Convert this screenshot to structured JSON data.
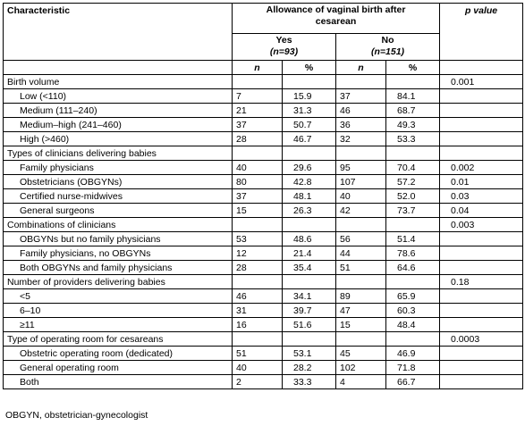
{
  "header": {
    "characteristic": "Characteristic",
    "allowance": "Allowance of vaginal birth after cesarean",
    "yes": "Yes",
    "yes_n": "(n=93)",
    "no": "No",
    "no_n": "(n=151)",
    "p_value": "p value",
    "n": "n",
    "pct": "%"
  },
  "sections": [
    {
      "label": "Birth volume",
      "p": "0.001",
      "rows": [
        {
          "label": "Low (<110)",
          "yes_n": "7",
          "yes_pct": "15.9",
          "no_n": "37",
          "no_pct": "84.1",
          "p": ""
        },
        {
          "label": "Medium (111–240)",
          "yes_n": "21",
          "yes_pct": "31.3",
          "no_n": "46",
          "no_pct": "68.7",
          "p": ""
        },
        {
          "label": "Medium–high (241–460)",
          "yes_n": "37",
          "yes_pct": "50.7",
          "no_n": "36",
          "no_pct": "49.3",
          "p": ""
        },
        {
          "label": "High (>460)",
          "yes_n": "28",
          "yes_pct": "46.7",
          "no_n": "32",
          "no_pct": "53.3",
          "p": ""
        }
      ]
    },
    {
      "label": "Types of clinicians delivering babies",
      "p": "",
      "rows": [
        {
          "label": "Family physicians",
          "yes_n": "40",
          "yes_pct": "29.6",
          "no_n": "95",
          "no_pct": "70.4",
          "p": "0.002"
        },
        {
          "label": "Obstetricians (OBGYNs)",
          "yes_n": "80",
          "yes_pct": "42.8",
          "no_n": "107",
          "no_pct": "57.2",
          "p": "0.01"
        },
        {
          "label": "Certified nurse-midwives",
          "yes_n": "37",
          "yes_pct": "48.1",
          "no_n": "40",
          "no_pct": "52.0",
          "p": "0.03"
        },
        {
          "label": "General surgeons",
          "yes_n": "15",
          "yes_pct": "26.3",
          "no_n": "42",
          "no_pct": "73.7",
          "p": "0.04"
        }
      ]
    },
    {
      "label": "Combinations of clinicians",
      "p": "0.003",
      "rows": [
        {
          "label": "OBGYNs  but no family physicians",
          "yes_n": "53",
          "yes_pct": "48.6",
          "no_n": "56",
          "no_pct": "51.4",
          "p": ""
        },
        {
          "label": "Family physicians, no OBGYNs",
          "yes_n": "12",
          "yes_pct": "21.4",
          "no_n": "44",
          "no_pct": "78.6",
          "p": ""
        },
        {
          "label": "Both OBGYNs  and family physicians",
          "yes_n": "28",
          "yes_pct": "35.4",
          "no_n": "51",
          "no_pct": "64.6",
          "p": ""
        }
      ]
    },
    {
      "label": "Number of providers delivering babies",
      "p": "0.18",
      "rows": [
        {
          "label": "<5",
          "yes_n": "46",
          "yes_pct": "34.1",
          "no_n": "89",
          "no_pct": "65.9",
          "p": ""
        },
        {
          "label": "6–10",
          "yes_n": "31",
          "yes_pct": "39.7",
          "no_n": "47",
          "no_pct": "60.3",
          "p": ""
        },
        {
          "label": "≥11",
          "yes_n": "16",
          "yes_pct": "51.6",
          "no_n": "15",
          "no_pct": "48.4",
          "p": ""
        }
      ]
    },
    {
      "label": "Type of operating room for cesareans",
      "p": "0.0003",
      "rows": [
        {
          "label": "Obstetric operating room (dedicated)",
          "yes_n": "51",
          "yes_pct": "53.1",
          "no_n": "45",
          "no_pct": "46.9",
          "p": ""
        },
        {
          "label": "General operating room",
          "yes_n": "40",
          "yes_pct": "28.2",
          "no_n": "102",
          "no_pct": "71.8",
          "p": ""
        },
        {
          "label": "Both",
          "yes_n": "2",
          "yes_pct": "33.3",
          "no_n": "4",
          "no_pct": "66.7",
          "p": ""
        }
      ]
    }
  ],
  "footnote": "OBGYN, obstetrician-gynecologist"
}
